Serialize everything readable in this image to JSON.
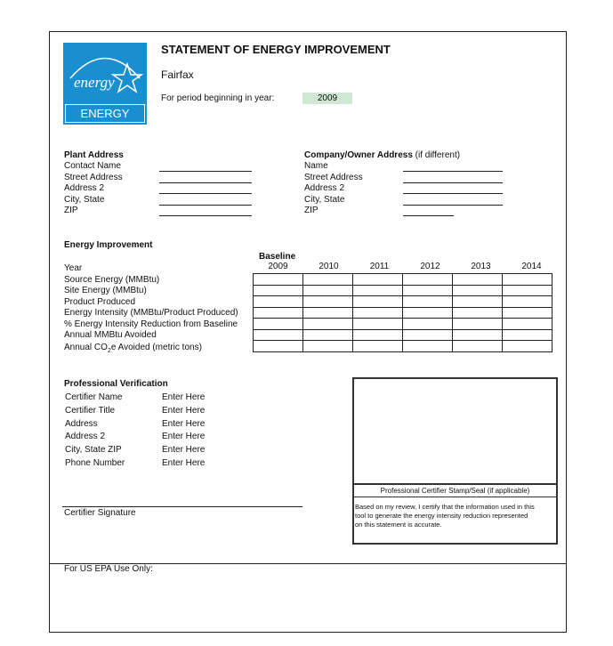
{
  "header": {
    "title": "STATEMENT OF ENERGY IMPROVEMENT",
    "facility": "Fairfax",
    "period_label": "For period beginning in year:",
    "period_value": "2009",
    "period_color": "#cfe8d4"
  },
  "logo": {
    "script": "energy",
    "text": "ENERGY STAR",
    "color": "#1a8fd0"
  },
  "plant": {
    "heading": "Plant Address",
    "fields": [
      "Contact Name",
      "Street Address",
      "Address 2",
      "City, State",
      "ZIP"
    ]
  },
  "company": {
    "heading": "Company/Owner Address",
    "heading_note": " (if different)",
    "fields": [
      "Name",
      "Street Address",
      "Address 2",
      "City, State",
      "ZIP"
    ]
  },
  "energy": {
    "heading": "Energy Improvement",
    "baseline_label": "Baseline",
    "years": [
      "2009",
      "2010",
      "2011",
      "2012",
      "2013",
      "2014"
    ],
    "rows": [
      "Year",
      "Source Energy (MMBtu)",
      "Site Energy (MMBtu)",
      "Product Produced",
      "Energy Intensity (MMBtu/Product Produced)",
      "% Energy Intensity Reduction from Baseline",
      "Annual MMBtu Avoided"
    ],
    "co2_row": {
      "pre": "Annual CO",
      "sub": "2",
      "post": "e Avoided (metric tons)"
    }
  },
  "verification": {
    "heading": "Professional Verification",
    "fields": [
      {
        "label": "Certifier Name",
        "value": "Enter Here"
      },
      {
        "label": "Certifier Title",
        "value": "Enter Here"
      },
      {
        "label": "Address",
        "value": "Enter Here"
      },
      {
        "label": "Address 2",
        "value": "Enter Here"
      },
      {
        "label": "City, State  ZIP",
        "value": "Enter Here"
      },
      {
        "label": "Phone Number",
        "value": "Enter Here"
      }
    ],
    "signature_label": "Certifier Signature",
    "stamp_label": "Professional Certifier Stamp/Seal (if applicable)",
    "certify_text": [
      "Based on my review, I certify that the information used in this",
      "tool to generate the energy intensity reduction represented",
      "on this statement is accurate."
    ]
  },
  "epa": {
    "label": "For US EPA Use Only:"
  }
}
